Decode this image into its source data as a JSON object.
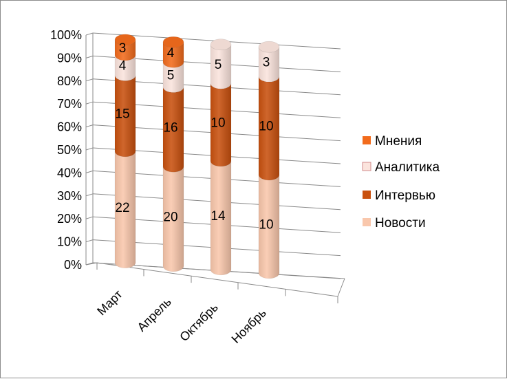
{
  "chart_data": {
    "type": "bar",
    "stacked": "percent",
    "style": "3d-cylinder",
    "categories": [
      "Март",
      "Апрель",
      "Октябрь",
      "Ноябрь"
    ],
    "series": [
      {
        "name": "Новости",
        "values": [
          22,
          20,
          14,
          10
        ],
        "color": "#F9C7AC"
      },
      {
        "name": "Интервью",
        "values": [
          15,
          16,
          10,
          10
        ],
        "color": "#C9510F"
      },
      {
        "name": "Аналитика",
        "values": [
          4,
          5,
          5,
          3
        ],
        "color": "#FBE4DD"
      },
      {
        "name": "Мнения",
        "values": [
          3,
          4,
          0,
          0
        ],
        "color": "#F26B1C"
      }
    ],
    "y_ticks": [
      "0%",
      "10%",
      "20%",
      "30%",
      "40%",
      "50%",
      "60%",
      "70%",
      "80%",
      "90%",
      "100%"
    ],
    "ylim": [
      0,
      100
    ],
    "grid": true,
    "legend": "right"
  }
}
